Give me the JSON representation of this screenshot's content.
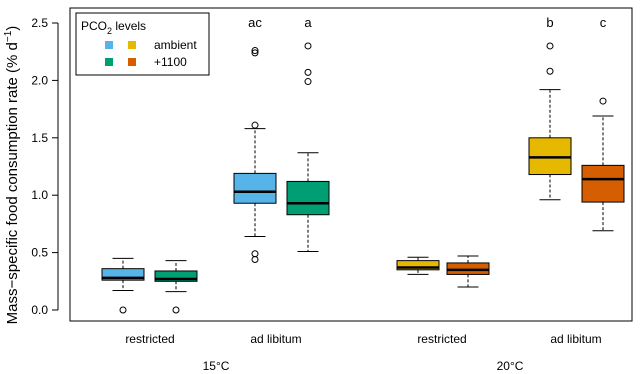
{
  "chart_data": {
    "type": "boxplot",
    "ylabel_main": "Mass−specific food consumption rate (% d",
    "ylabel_sup": "−1",
    "ylabel_close": ")",
    "ylim": [
      0,
      2.5
    ],
    "yticks": [
      "0.0",
      "0.5",
      "1.0",
      "1.5",
      "2.0",
      "2.5"
    ],
    "ytick_values": [
      0,
      0.5,
      1.0,
      1.5,
      2.0,
      2.5
    ],
    "legend": {
      "title_main": "PCO",
      "title_sub": "2",
      "title_rest": " levels",
      "placement": "top-left",
      "entries": [
        {
          "label": "ambient",
          "colors": [
            "#56b4e9",
            "#e6b800"
          ]
        },
        {
          "label": "+1100",
          "colors": [
            "#009e73",
            "#d55e00"
          ]
        }
      ]
    },
    "x_groups": [
      {
        "label": "restricted"
      },
      {
        "label": "ad libitum"
      },
      {
        "label": "restricted"
      },
      {
        "label": "ad libitum"
      }
    ],
    "temperatures": [
      "15°C",
      "20°C"
    ],
    "boxes": [
      {
        "group": 0,
        "co2": "ambient",
        "color": "#56b4e9",
        "whisker_low": 0.17,
        "q1": 0.26,
        "median": 0.28,
        "q3": 0.36,
        "whisker_high": 0.45,
        "outliers": [
          0.0
        ]
      },
      {
        "group": 0,
        "co2": "+1100",
        "color": "#009e73",
        "whisker_low": 0.16,
        "q1": 0.25,
        "median": 0.27,
        "q3": 0.34,
        "whisker_high": 0.43,
        "outliers": [
          0.0
        ]
      },
      {
        "group": 1,
        "co2": "ambient",
        "color": "#56b4e9",
        "whisker_low": 0.64,
        "q1": 0.93,
        "median": 1.03,
        "q3": 1.19,
        "whisker_high": 1.58,
        "outliers": [
          0.44,
          0.49,
          1.61,
          2.24,
          2.26
        ],
        "letter": "ac"
      },
      {
        "group": 1,
        "co2": "+1100",
        "color": "#009e73",
        "whisker_low": 0.51,
        "q1": 0.83,
        "median": 0.93,
        "q3": 1.12,
        "whisker_high": 1.37,
        "outliers": [
          1.99,
          2.07,
          2.3
        ],
        "letter": "a"
      },
      {
        "group": 2,
        "co2": "ambient",
        "color": "#e6b800",
        "whisker_low": 0.31,
        "q1": 0.35,
        "median": 0.37,
        "q3": 0.43,
        "whisker_high": 0.46,
        "outliers": []
      },
      {
        "group": 2,
        "co2": "+1100",
        "color": "#d55e00",
        "whisker_low": 0.2,
        "q1": 0.31,
        "median": 0.35,
        "q3": 0.41,
        "whisker_high": 0.47,
        "outliers": []
      },
      {
        "group": 3,
        "co2": "ambient",
        "color": "#e6b800",
        "whisker_low": 0.96,
        "q1": 1.18,
        "median": 1.33,
        "q3": 1.5,
        "whisker_high": 1.92,
        "outliers": [
          2.08,
          2.3
        ],
        "letter": "b"
      },
      {
        "group": 3,
        "co2": "+1100",
        "color": "#d55e00",
        "whisker_low": 0.69,
        "q1": 0.94,
        "median": 1.14,
        "q3": 1.26,
        "whisker_high": 1.69,
        "outliers": [
          1.82
        ],
        "letter": "c"
      }
    ]
  }
}
